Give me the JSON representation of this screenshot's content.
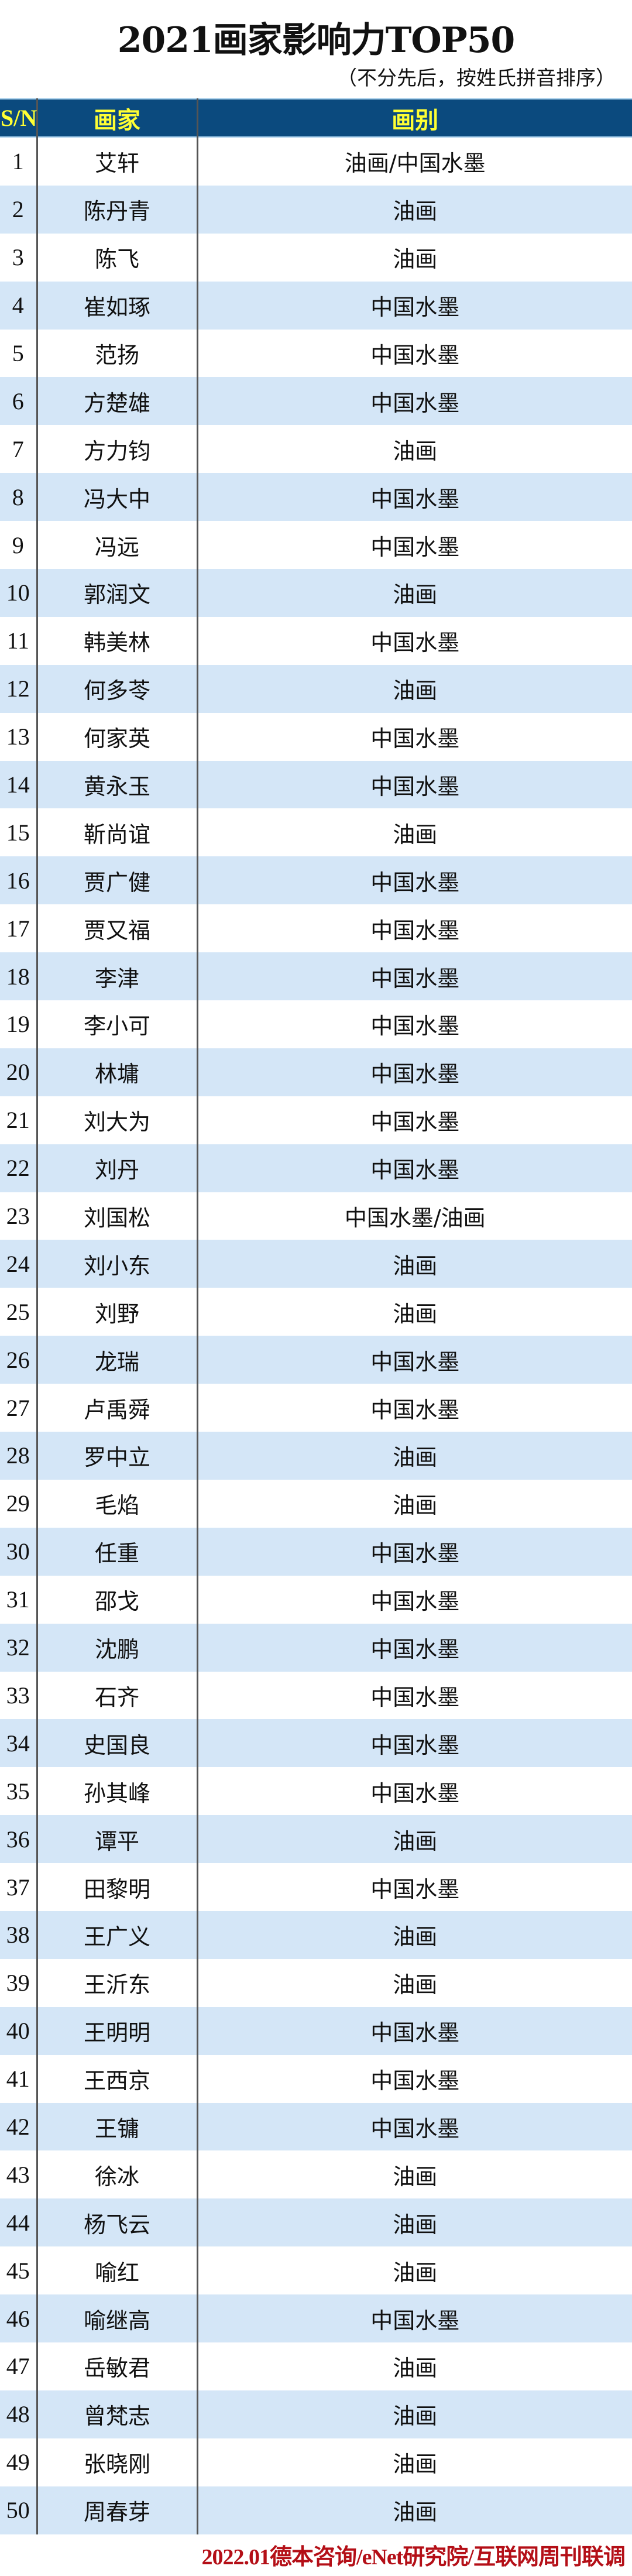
{
  "title": "2021画家影响力TOP50",
  "subtitle": "（不分先后，按姓氏拼音排序）",
  "colors": {
    "header_bg": "#0b4a7e",
    "header_text": "#ffff33",
    "stripe": "#d4e6f7",
    "footer": "#b40f17"
  },
  "table": {
    "headers": [
      "S/N",
      "画家",
      "画别"
    ],
    "rows": [
      [
        "1",
        "艾轩",
        "油画/中国水墨"
      ],
      [
        "2",
        "陈丹青",
        "油画"
      ],
      [
        "3",
        "陈飞",
        "油画"
      ],
      [
        "4",
        "崔如琢",
        "中国水墨"
      ],
      [
        "5",
        "范扬",
        "中国水墨"
      ],
      [
        "6",
        "方楚雄",
        "中国水墨"
      ],
      [
        "7",
        "方力钧",
        "油画"
      ],
      [
        "8",
        "冯大中",
        "中国水墨"
      ],
      [
        "9",
        "冯远",
        "中国水墨"
      ],
      [
        "10",
        "郭润文",
        "油画"
      ],
      [
        "11",
        "韩美林",
        "中国水墨"
      ],
      [
        "12",
        "何多苓",
        "油画"
      ],
      [
        "13",
        "何家英",
        "中国水墨"
      ],
      [
        "14",
        "黄永玉",
        "中国水墨"
      ],
      [
        "15",
        "靳尚谊",
        "油画"
      ],
      [
        "16",
        "贾广健",
        "中国水墨"
      ],
      [
        "17",
        "贾又福",
        "中国水墨"
      ],
      [
        "18",
        "李津",
        "中国水墨"
      ],
      [
        "19",
        "李小可",
        "中国水墨"
      ],
      [
        "20",
        "林墉",
        "中国水墨"
      ],
      [
        "21",
        "刘大为",
        "中国水墨"
      ],
      [
        "22",
        "刘丹",
        "中国水墨"
      ],
      [
        "23",
        "刘国松",
        "中国水墨/油画"
      ],
      [
        "24",
        "刘小东",
        "油画"
      ],
      [
        "25",
        "刘野",
        "油画"
      ],
      [
        "26",
        "龙瑞",
        "中国水墨"
      ],
      [
        "27",
        "卢禹舜",
        "中国水墨"
      ],
      [
        "28",
        "罗中立",
        "油画"
      ],
      [
        "29",
        "毛焰",
        "油画"
      ],
      [
        "30",
        "任重",
        "中国水墨"
      ],
      [
        "31",
        "邵戈",
        "中国水墨"
      ],
      [
        "32",
        "沈鹏",
        "中国水墨"
      ],
      [
        "33",
        "石齐",
        "中国水墨"
      ],
      [
        "34",
        "史国良",
        "中国水墨"
      ],
      [
        "35",
        "孙其峰",
        "中国水墨"
      ],
      [
        "36",
        "谭平",
        "油画"
      ],
      [
        "37",
        "田黎明",
        "中国水墨"
      ],
      [
        "38",
        "王广义",
        "油画"
      ],
      [
        "39",
        "王沂东",
        "油画"
      ],
      [
        "40",
        "王明明",
        "中国水墨"
      ],
      [
        "41",
        "王西京",
        "中国水墨"
      ],
      [
        "42",
        "王镛",
        "中国水墨"
      ],
      [
        "43",
        "徐冰",
        "油画"
      ],
      [
        "44",
        "杨飞云",
        "油画"
      ],
      [
        "45",
        "喻红",
        "油画"
      ],
      [
        "46",
        "喻继高",
        "中国水墨"
      ],
      [
        "47",
        "岳敏君",
        "油画"
      ],
      [
        "48",
        "曾梵志",
        "油画"
      ],
      [
        "49",
        "张晓刚",
        "油画"
      ],
      [
        "50",
        "周春芽",
        "油画"
      ]
    ]
  },
  "footer": "2022.01德本咨询/eNet研究院/互联网周刊联调"
}
